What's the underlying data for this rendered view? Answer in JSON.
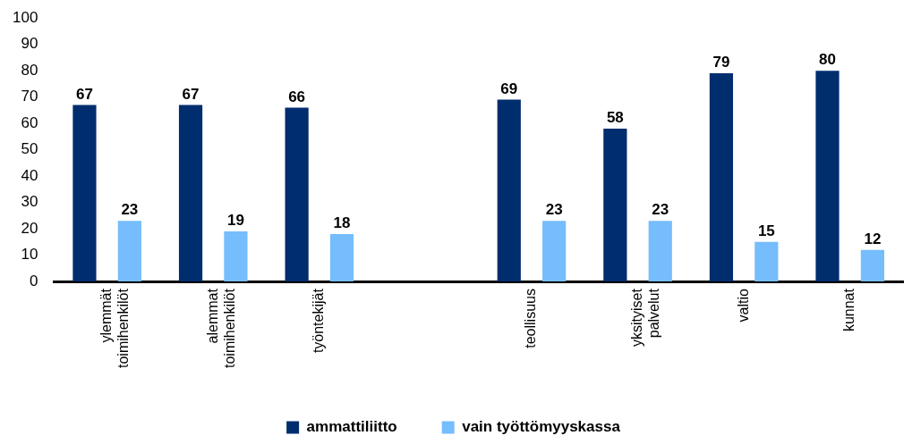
{
  "chart_data": {
    "type": "bar",
    "categories": [
      "ylemmät toimihenkilöt",
      "alemmat toimihenkilöt",
      "työntekijät",
      null,
      "teollisuus",
      "yksityiset palvelut",
      "valtio",
      "kunnat"
    ],
    "series": [
      {
        "name": "ammattiliitto",
        "color": "#002d6e",
        "values": [
          67,
          67,
          66,
          null,
          69,
          58,
          79,
          80
        ]
      },
      {
        "name": "vain työttömyyskassa",
        "color": "#75bdfc",
        "values": [
          23,
          19,
          18,
          null,
          23,
          23,
          15,
          12
        ]
      }
    ],
    "ylim": [
      0,
      100
    ],
    "yticks": [
      0,
      10,
      20,
      30,
      40,
      50,
      60,
      70,
      80,
      90,
      100
    ],
    "grid": false,
    "legend": "bottom",
    "data_labels": true
  }
}
